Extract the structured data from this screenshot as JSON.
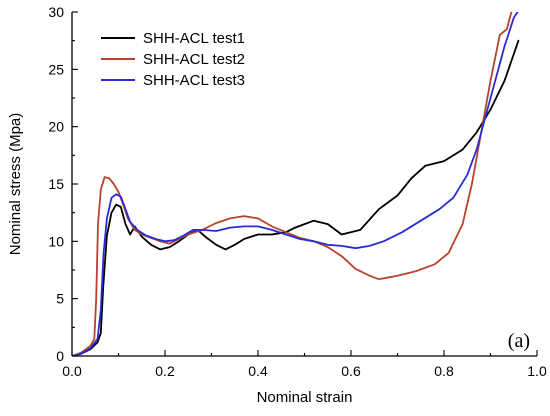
{
  "chart_data": {
    "type": "line",
    "xlabel": "Nominal strain",
    "ylabel": "Nominal stress (Mpa)",
    "panel_label": "(a)",
    "xlim": [
      0.0,
      1.0
    ],
    "ylim": [
      0,
      30
    ],
    "x_ticks": [
      "0.0",
      "0.2",
      "0.4",
      "0.6",
      "0.8",
      "1.0"
    ],
    "y_ticks": [
      "0",
      "5",
      "10",
      "15",
      "20",
      "25",
      "30"
    ],
    "legend_position": "top-left",
    "grid": false,
    "series": [
      {
        "name": "SHH-ACL test1",
        "color": "#000000",
        "points": [
          [
            0.0,
            0.0
          ],
          [
            0.02,
            0.2
          ],
          [
            0.04,
            0.6
          ],
          [
            0.055,
            1.2
          ],
          [
            0.062,
            2.0
          ],
          [
            0.067,
            6.0
          ],
          [
            0.075,
            10.5
          ],
          [
            0.085,
            12.5
          ],
          [
            0.095,
            13.2
          ],
          [
            0.105,
            13.0
          ],
          [
            0.115,
            11.5
          ],
          [
            0.125,
            10.6
          ],
          [
            0.135,
            11.3
          ],
          [
            0.15,
            10.4
          ],
          [
            0.17,
            9.7
          ],
          [
            0.19,
            9.3
          ],
          [
            0.21,
            9.5
          ],
          [
            0.23,
            10.0
          ],
          [
            0.25,
            10.6
          ],
          [
            0.27,
            11.0
          ],
          [
            0.29,
            10.3
          ],
          [
            0.31,
            9.7
          ],
          [
            0.33,
            9.3
          ],
          [
            0.35,
            9.7
          ],
          [
            0.37,
            10.2
          ],
          [
            0.4,
            10.6
          ],
          [
            0.43,
            10.6
          ],
          [
            0.46,
            10.8
          ],
          [
            0.48,
            11.2
          ],
          [
            0.5,
            11.5
          ],
          [
            0.52,
            11.8
          ],
          [
            0.55,
            11.5
          ],
          [
            0.58,
            10.6
          ],
          [
            0.62,
            11.0
          ],
          [
            0.66,
            12.8
          ],
          [
            0.7,
            14.0
          ],
          [
            0.73,
            15.5
          ],
          [
            0.76,
            16.6
          ],
          [
            0.8,
            17.0
          ],
          [
            0.84,
            18.0
          ],
          [
            0.87,
            19.5
          ],
          [
            0.9,
            21.5
          ],
          [
            0.93,
            24.0
          ],
          [
            0.96,
            27.5
          ]
        ]
      },
      {
        "name": "SHH-ACL test2",
        "color": "#b5442a",
        "points": [
          [
            0.0,
            0.0
          ],
          [
            0.02,
            0.3
          ],
          [
            0.04,
            0.9
          ],
          [
            0.048,
            1.5
          ],
          [
            0.052,
            5.0
          ],
          [
            0.056,
            11.5
          ],
          [
            0.062,
            14.5
          ],
          [
            0.07,
            15.6
          ],
          [
            0.08,
            15.5
          ],
          [
            0.09,
            15.0
          ],
          [
            0.1,
            14.3
          ],
          [
            0.11,
            13.2
          ],
          [
            0.12,
            12.0
          ],
          [
            0.135,
            11.0
          ],
          [
            0.15,
            10.6
          ],
          [
            0.17,
            10.3
          ],
          [
            0.19,
            10.0
          ],
          [
            0.21,
            9.8
          ],
          [
            0.23,
            10.2
          ],
          [
            0.25,
            10.6
          ],
          [
            0.28,
            11.0
          ],
          [
            0.31,
            11.6
          ],
          [
            0.34,
            12.0
          ],
          [
            0.37,
            12.2
          ],
          [
            0.4,
            12.0
          ],
          [
            0.43,
            11.3
          ],
          [
            0.46,
            10.8
          ],
          [
            0.49,
            10.3
          ],
          [
            0.52,
            10.0
          ],
          [
            0.55,
            9.5
          ],
          [
            0.58,
            8.7
          ],
          [
            0.61,
            7.6
          ],
          [
            0.64,
            7.0
          ],
          [
            0.66,
            6.7
          ],
          [
            0.7,
            7.0
          ],
          [
            0.74,
            7.4
          ],
          [
            0.78,
            8.0
          ],
          [
            0.81,
            9.0
          ],
          [
            0.84,
            11.5
          ],
          [
            0.86,
            15.0
          ],
          [
            0.88,
            19.5
          ],
          [
            0.9,
            24.0
          ],
          [
            0.92,
            28.0
          ],
          [
            0.935,
            28.5
          ],
          [
            0.945,
            30.0
          ]
        ]
      },
      {
        "name": "SHH-ACL test3",
        "color": "#2b2bd6",
        "points": [
          [
            0.0,
            0.0
          ],
          [
            0.02,
            0.2
          ],
          [
            0.04,
            0.7
          ],
          [
            0.055,
            1.5
          ],
          [
            0.062,
            4.0
          ],
          [
            0.068,
            9.0
          ],
          [
            0.075,
            12.0
          ],
          [
            0.085,
            13.8
          ],
          [
            0.095,
            14.1
          ],
          [
            0.105,
            13.9
          ],
          [
            0.115,
            12.8
          ],
          [
            0.125,
            11.7
          ],
          [
            0.14,
            11.0
          ],
          [
            0.16,
            10.5
          ],
          [
            0.18,
            10.2
          ],
          [
            0.2,
            10.0
          ],
          [
            0.22,
            10.1
          ],
          [
            0.24,
            10.5
          ],
          [
            0.26,
            11.0
          ],
          [
            0.28,
            11.0
          ],
          [
            0.31,
            10.9
          ],
          [
            0.34,
            11.2
          ],
          [
            0.37,
            11.3
          ],
          [
            0.4,
            11.3
          ],
          [
            0.43,
            11.0
          ],
          [
            0.46,
            10.6
          ],
          [
            0.49,
            10.2
          ],
          [
            0.52,
            10.0
          ],
          [
            0.55,
            9.7
          ],
          [
            0.58,
            9.6
          ],
          [
            0.61,
            9.4
          ],
          [
            0.64,
            9.6
          ],
          [
            0.67,
            10.0
          ],
          [
            0.71,
            10.8
          ],
          [
            0.75,
            11.8
          ],
          [
            0.79,
            12.8
          ],
          [
            0.82,
            13.8
          ],
          [
            0.85,
            15.8
          ],
          [
            0.87,
            18.0
          ],
          [
            0.89,
            21.0
          ],
          [
            0.91,
            24.0
          ],
          [
            0.93,
            27.0
          ],
          [
            0.95,
            29.5
          ],
          [
            0.958,
            30.0
          ]
        ]
      }
    ]
  }
}
